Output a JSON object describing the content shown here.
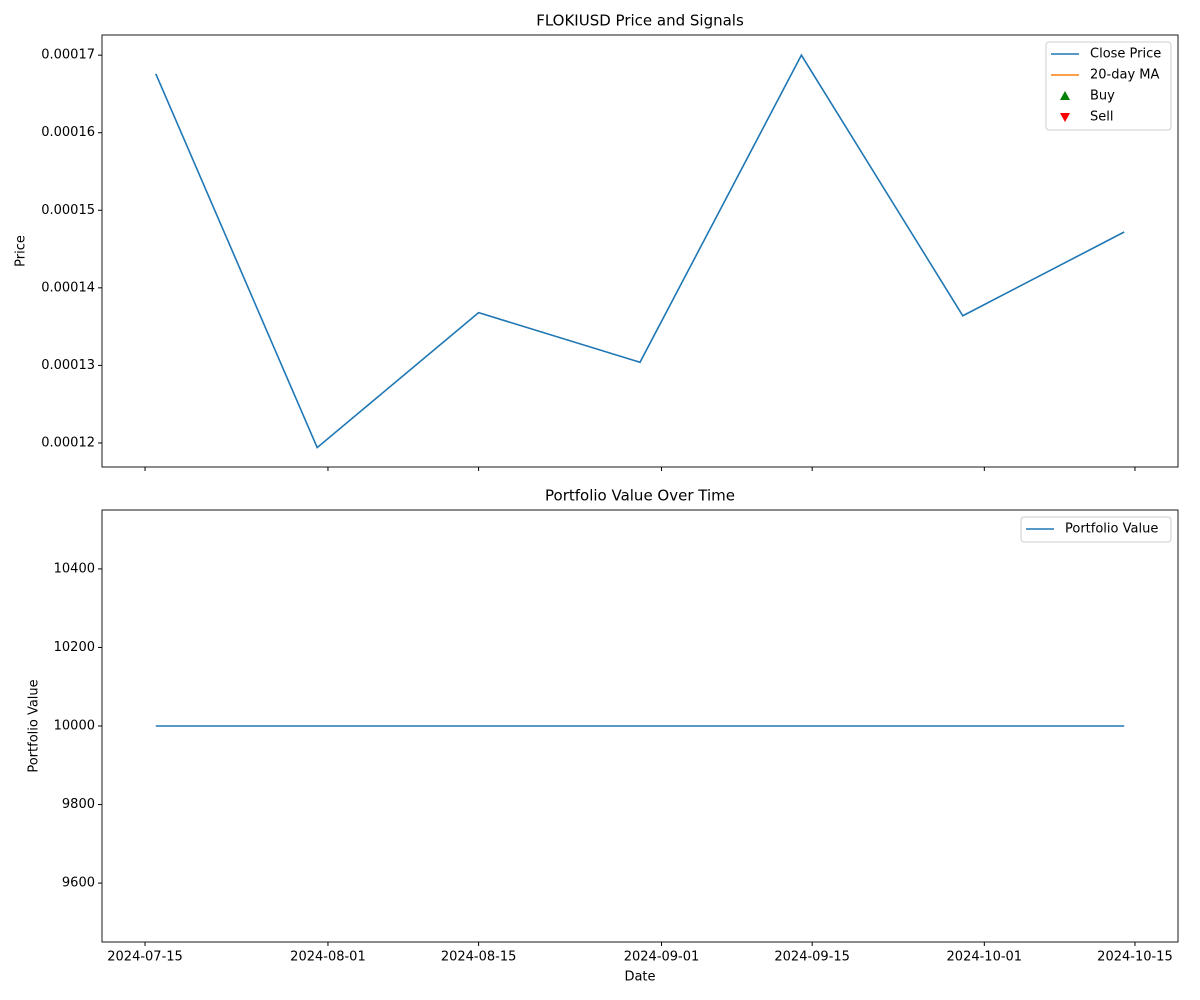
{
  "chart_data": [
    {
      "type": "line",
      "title": "FLOKIUSD Price and Signals",
      "ylabel": "Price",
      "x": [
        "2024-07-16",
        "2024-07-31",
        "2024-08-15",
        "2024-08-30",
        "2024-09-14",
        "2024-09-29",
        "2024-10-14"
      ],
      "series": [
        {
          "name": "Close Price",
          "color": "#1f77b4",
          "values": [
            0.0001676,
            0.0001194,
            0.0001368,
            0.0001304,
            0.00017,
            0.0001364,
            0.0001472
          ]
        },
        {
          "name": "20-day MA",
          "color": "#ff7f0e",
          "values": [
            null,
            null,
            null,
            null,
            null,
            null,
            null
          ]
        },
        {
          "name": "Buy",
          "color": "#008000",
          "marker": "^",
          "values": [
            null,
            null,
            null,
            null,
            null,
            null,
            null
          ]
        },
        {
          "name": "Sell",
          "color": "#ff0000",
          "marker": "v",
          "values": [
            null,
            null,
            null,
            null,
            null,
            null,
            null
          ]
        }
      ],
      "xlim": [
        "2024-07-11",
        "2024-10-19"
      ],
      "xticks": [
        "2024-07-15",
        "2024-08-01",
        "2024-08-15",
        "2024-09-01",
        "2024-09-15",
        "2024-10-01",
        "2024-10-15"
      ],
      "show_xtick_labels": false,
      "ylim": [
        0.0001169,
        0.0001726
      ],
      "yticks": [
        0.00012,
        0.00013,
        0.00014,
        0.00015,
        0.00016,
        0.00017
      ],
      "legend": "upper right"
    },
    {
      "type": "line",
      "title": "Portfolio Value Over Time",
      "xlabel": "Date",
      "ylabel": "Portfolio Value",
      "x": [
        "2024-07-16",
        "2024-07-31",
        "2024-08-15",
        "2024-08-30",
        "2024-09-14",
        "2024-09-29",
        "2024-10-14"
      ],
      "series": [
        {
          "name": "Portfolio Value",
          "color": "#1f77b4",
          "values": [
            10000,
            10000,
            10000,
            10000,
            10000,
            10000,
            10000
          ]
        }
      ],
      "xlim": [
        "2024-07-11",
        "2024-10-19"
      ],
      "xticks": [
        "2024-07-15",
        "2024-08-01",
        "2024-08-15",
        "2024-09-01",
        "2024-09-15",
        "2024-10-01",
        "2024-10-15"
      ],
      "show_xtick_labels": true,
      "ylim": [
        9450,
        10550
      ],
      "yticks": [
        9600,
        9800,
        10000,
        10200,
        10400
      ],
      "legend": "upper right"
    }
  ]
}
